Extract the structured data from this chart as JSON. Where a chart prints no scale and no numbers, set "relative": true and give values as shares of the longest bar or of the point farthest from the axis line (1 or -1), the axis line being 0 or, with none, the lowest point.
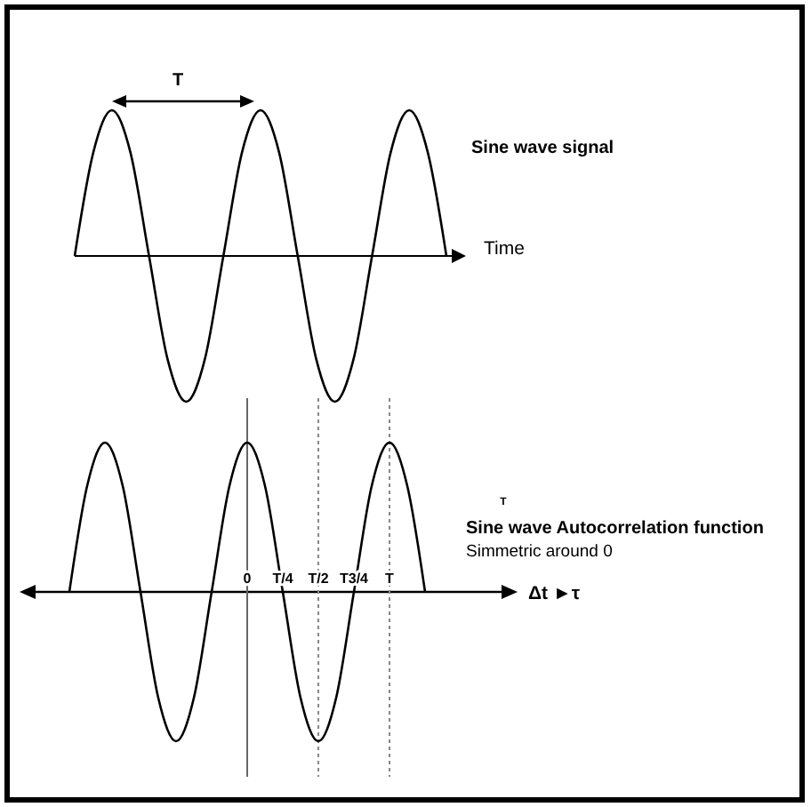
{
  "chart_data": [
    {
      "type": "line",
      "xlabel": "Time",
      "relative": true,
      "annotations": [
        "T",
        "Sine wave signal"
      ],
      "categories": [
        null,
        null,
        null,
        null,
        null,
        null,
        null,
        null,
        null,
        null,
        null,
        null,
        null,
        null,
        null,
        null,
        null,
        null,
        null,
        null,
        null
      ],
      "series": [
        {
          "color": "#000000",
          "values": [
            0,
            0.71,
            1,
            0.71,
            0,
            -0.71,
            -1,
            -0.71,
            0,
            0.71,
            1,
            0.71,
            0,
            -0.71,
            -1,
            -0.71,
            0,
            0.71,
            1,
            0.71,
            0
          ]
        }
      ],
      "tick_labels": false,
      "grid": false
    },
    {
      "type": "line",
      "xlabel": "Δt ►τ",
      "relative": true,
      "annotations": [
        "T",
        "Sine wave Autocorrelation function",
        "Simmetric around 0"
      ],
      "categories": [
        null,
        null,
        null,
        null,
        null,
        null,
        null,
        null,
        null,
        null,
        "0",
        null,
        "T/4",
        null,
        "T/2",
        null,
        "T3/4",
        null,
        "T",
        null,
        null
      ],
      "series": [
        {
          "color": "#000000",
          "values": [
            0,
            0.71,
            1,
            0.71,
            0,
            -0.71,
            -1,
            -0.71,
            0,
            0.71,
            1,
            0.71,
            0,
            -0.71,
            -1,
            -0.71,
            0,
            0.71,
            1,
            0.71,
            0
          ]
        }
      ],
      "ref_lines": [
        {
          "axis": "x",
          "value": "0",
          "color": "#666666",
          "line_style": "solid"
        },
        {
          "axis": "x",
          "value": "T/2",
          "color": "#888888",
          "line_style": "dotted"
        },
        {
          "axis": "x",
          "value": "T",
          "color": "#888888",
          "line_style": "dotted"
        }
      ],
      "tick_labels": "x",
      "grid": false
    }
  ]
}
